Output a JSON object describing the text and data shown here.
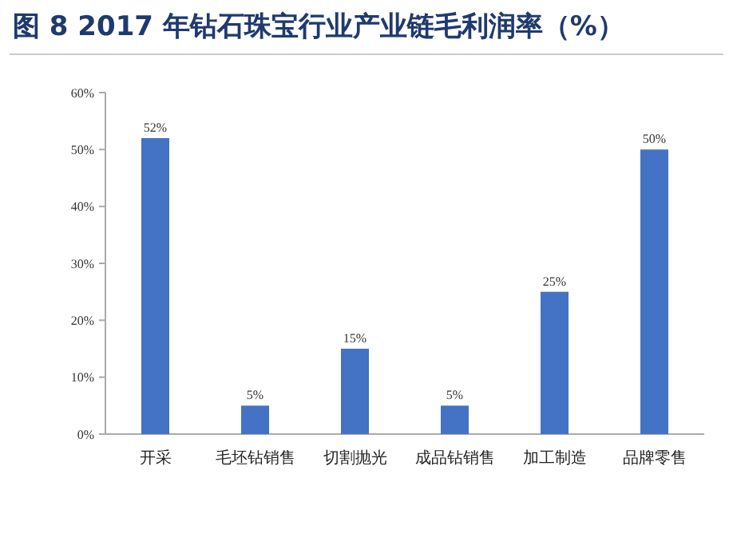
{
  "chart_data": {
    "type": "bar",
    "title": "图 8 2017 年钻石珠宝行业产业链毛利润率（%）",
    "categories": [
      "开采",
      "毛坯钻销售",
      "切割抛光",
      "成品钻销售",
      "加工制造",
      "品牌零售"
    ],
    "values": [
      52,
      5,
      15,
      5,
      25,
      50
    ],
    "color": "#4472c4",
    "value_labels": [
      "52%",
      "5%",
      "15%",
      "5%",
      "25%",
      "50%"
    ],
    "ylim": [
      0,
      60
    ],
    "yticks": [
      {
        "value": 0,
        "label": "0%"
      },
      {
        "value": 10,
        "label": "10%"
      },
      {
        "value": 20,
        "label": "20%"
      },
      {
        "value": 30,
        "label": "30%"
      },
      {
        "value": 40,
        "label": "40%"
      },
      {
        "value": 50,
        "label": "50%"
      },
      {
        "value": 60,
        "label": "60%"
      }
    ],
    "grid": false
  }
}
